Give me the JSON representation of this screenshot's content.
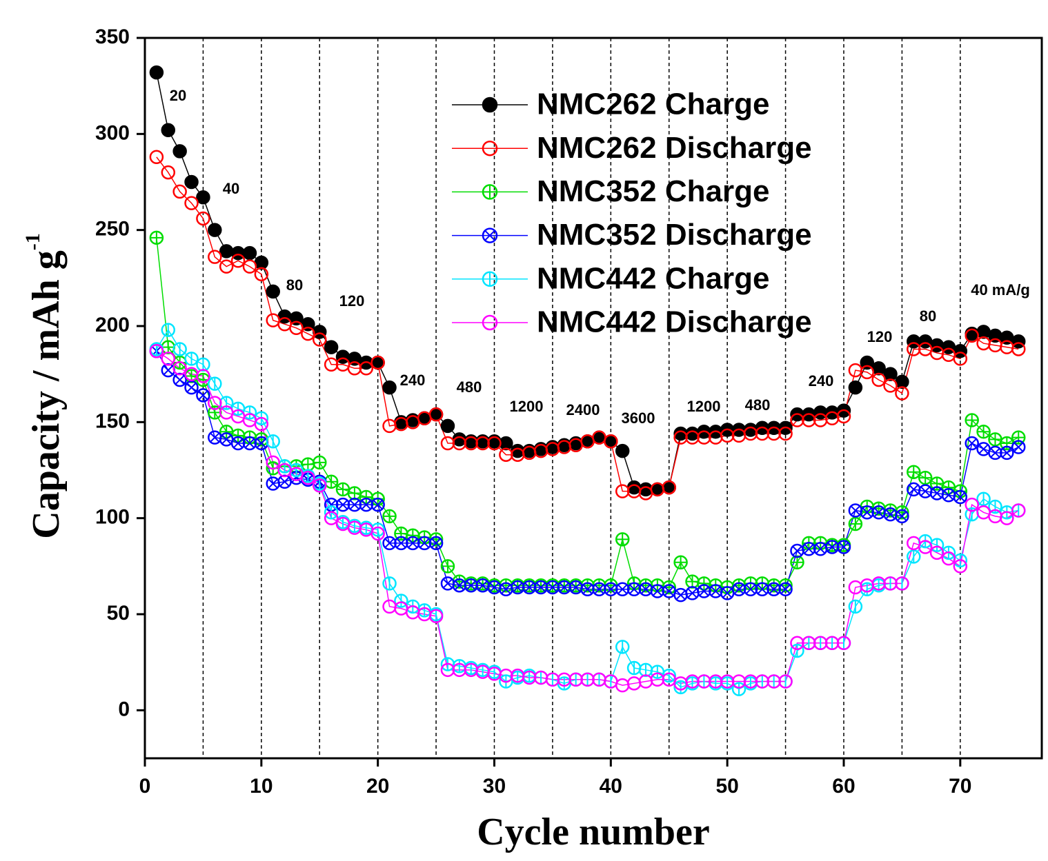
{
  "chart_data": {
    "type": "line",
    "xlabel": "Cycle number",
    "ylabel": "Capacity / mAh g",
    "ylabel_superscript": "-1",
    "xlim": [
      0,
      77
    ],
    "ylim": [
      -25,
      350
    ],
    "xticks": [
      0,
      10,
      20,
      30,
      40,
      50,
      60,
      70
    ],
    "yticks": [
      0,
      50,
      100,
      150,
      200,
      250,
      300,
      350
    ],
    "dividers": [
      5,
      10,
      15,
      20,
      25,
      30,
      35,
      40,
      45,
      50,
      55,
      60,
      65,
      70
    ],
    "legend": "upper center",
    "annotations": [
      "20",
      "40",
      "80",
      "120",
      "240",
      "480",
      "1200",
      "2400",
      "3600",
      "1200",
      "480",
      "240",
      "120",
      "80",
      "40 mA/g"
    ],
    "x": [
      1,
      2,
      3,
      4,
      5,
      6,
      7,
      8,
      9,
      10,
      11,
      12,
      13,
      14,
      15,
      16,
      17,
      18,
      19,
      20,
      21,
      22,
      23,
      24,
      25,
      26,
      27,
      28,
      29,
      30,
      31,
      32,
      33,
      34,
      35,
      36,
      37,
      38,
      39,
      40,
      41,
      42,
      43,
      44,
      45,
      46,
      47,
      48,
      49,
      50,
      51,
      52,
      53,
      54,
      55,
      56,
      57,
      58,
      59,
      60,
      61,
      62,
      63,
      64,
      65,
      66,
      67,
      68,
      69,
      70,
      71,
      72,
      73,
      74,
      75
    ],
    "series": [
      {
        "name": "NMC262 Charge",
        "color": "#000000",
        "marker": "filled",
        "values": [
          332,
          302,
          291,
          275,
          267,
          250,
          239,
          238,
          238,
          233,
          218,
          205,
          204,
          201,
          197,
          189,
          184,
          183,
          181,
          181,
          168,
          150,
          151,
          152,
          154,
          148,
          141,
          140,
          140,
          140,
          139,
          135,
          135,
          136,
          137,
          138,
          139,
          140,
          142,
          140,
          135,
          116,
          115,
          115,
          116,
          144,
          144,
          145,
          145,
          146,
          146,
          146,
          147,
          147,
          147,
          154,
          154,
          155,
          155,
          156,
          168,
          181,
          178,
          175,
          171,
          192,
          192,
          190,
          189,
          187,
          196,
          197,
          195,
          194,
          192
        ]
      },
      {
        "name": "NMC262 Discharge",
        "color": "#ff0000",
        "marker": "open",
        "values": [
          288,
          280,
          270,
          264,
          256,
          236,
          231,
          234,
          231,
          227,
          203,
          201,
          199,
          196,
          193,
          180,
          180,
          178,
          178,
          181,
          148,
          149,
          150,
          152,
          154,
          139,
          139,
          139,
          139,
          139,
          133,
          133,
          134,
          135,
          136,
          137,
          138,
          140,
          142,
          140,
          114,
          114,
          113,
          115,
          116,
          142,
          142,
          142,
          142,
          143,
          143,
          144,
          144,
          144,
          144,
          151,
          151,
          151,
          152,
          153,
          177,
          176,
          172,
          169,
          165,
          188,
          188,
          186,
          185,
          183,
          195,
          191,
          190,
          189,
          188
        ]
      },
      {
        "name": "NMC352 Charge",
        "color": "#00dd00",
        "marker": "plus",
        "values": [
          246,
          189,
          181,
          174,
          172,
          155,
          145,
          143,
          142,
          141,
          126,
          127,
          127,
          128,
          129,
          119,
          115,
          113,
          111,
          110,
          101,
          92,
          91,
          90,
          89,
          75,
          67,
          66,
          66,
          65,
          65,
          65,
          65,
          65,
          65,
          65,
          65,
          65,
          65,
          65,
          89,
          66,
          65,
          65,
          64,
          77,
          67,
          66,
          65,
          64,
          65,
          66,
          66,
          65,
          65,
          77,
          87,
          87,
          86,
          86,
          97,
          106,
          105,
          104,
          103,
          124,
          121,
          118,
          116,
          114,
          151,
          145,
          141,
          139,
          142
        ]
      },
      {
        "name": "NMC352 Discharge",
        "color": "#0000ff",
        "marker": "cross",
        "values": [
          187,
          177,
          172,
          168,
          164,
          142,
          141,
          139,
          139,
          139,
          118,
          119,
          121,
          120,
          119,
          107,
          107,
          107,
          107,
          107,
          87,
          87,
          87,
          87,
          87,
          66,
          65,
          65,
          65,
          64,
          63,
          64,
          64,
          64,
          64,
          64,
          64,
          63,
          63,
          63,
          63,
          63,
          63,
          62,
          62,
          60,
          61,
          62,
          62,
          61,
          63,
          63,
          63,
          63,
          63,
          83,
          84,
          84,
          85,
          85,
          104,
          103,
          103,
          102,
          101,
          115,
          114,
          113,
          112,
          111,
          139,
          136,
          134,
          134,
          137
        ]
      },
      {
        "name": "NMC442 Charge",
        "color": "#00e5ff",
        "marker": "vline",
        "values": [
          188,
          198,
          188,
          183,
          180,
          170,
          160,
          157,
          155,
          152,
          140,
          127,
          125,
          122,
          118,
          103,
          98,
          96,
          95,
          94,
          66,
          57,
          54,
          52,
          50,
          24,
          23,
          22,
          21,
          20,
          15,
          17,
          18,
          17,
          16,
          14,
          16,
          16,
          16,
          15,
          33,
          22,
          21,
          20,
          18,
          12,
          14,
          15,
          14,
          14,
          11,
          14,
          15,
          15,
          15,
          31,
          35,
          35,
          35,
          35,
          54,
          63,
          65,
          66,
          66,
          80,
          88,
          86,
          82,
          78,
          102,
          110,
          106,
          103,
          104
        ]
      },
      {
        "name": "NMC442 Discharge",
        "color": "#ff00ff",
        "marker": "open",
        "values": [
          187,
          183,
          178,
          175,
          174,
          160,
          155,
          153,
          151,
          149,
          129,
          125,
          123,
          121,
          117,
          100,
          97,
          95,
          94,
          92,
          54,
          53,
          51,
          50,
          49,
          21,
          21,
          21,
          20,
          19,
          18,
          18,
          17,
          17,
          16,
          16,
          16,
          16,
          16,
          15,
          13,
          14,
          15,
          16,
          16,
          14,
          15,
          15,
          15,
          15,
          15,
          15,
          15,
          15,
          15,
          35,
          35,
          35,
          35,
          35,
          64,
          65,
          66,
          66,
          66,
          87,
          85,
          82,
          79,
          75,
          107,
          103,
          101,
          100,
          104
        ]
      }
    ]
  }
}
